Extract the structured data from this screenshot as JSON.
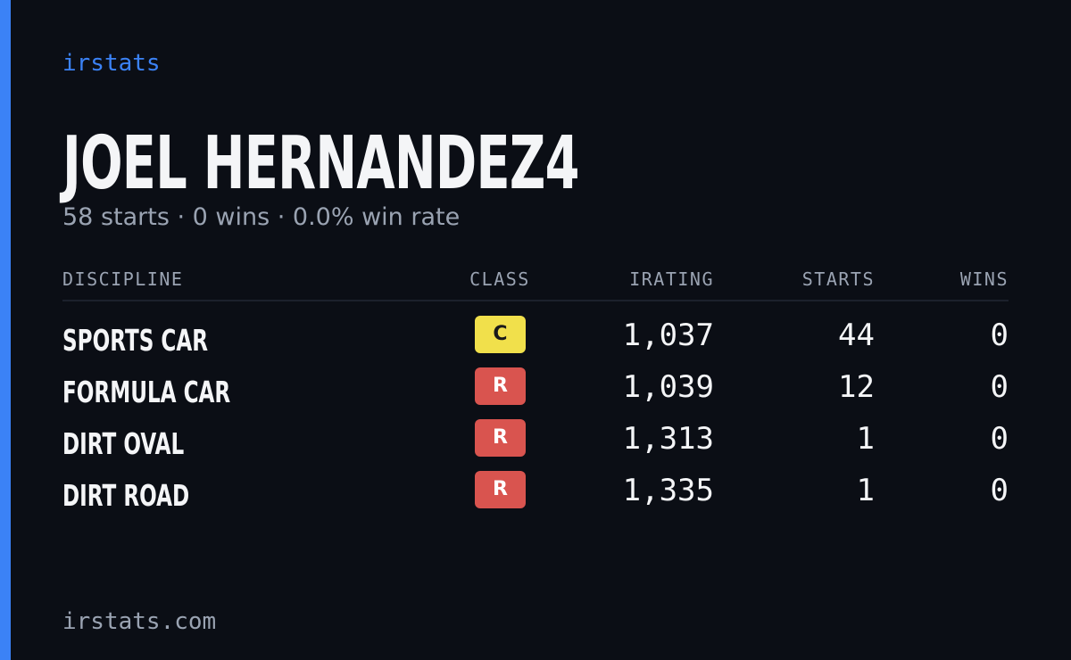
{
  "brand": "irstats",
  "title": "JOEL HERNANDEZ4",
  "subtitle": "58 starts · 0 wins · 0.0% win rate",
  "table": {
    "headers": [
      "DISCIPLINE",
      "CLASS",
      "IRATING",
      "STARTS",
      "WINS"
    ],
    "rows": [
      {
        "discipline": "SPORTS CAR",
        "class": "C",
        "class_color": "#f1e04b",
        "irating": "1,037",
        "starts": 44,
        "wins": 0
      },
      {
        "discipline": "FORMULA CAR",
        "class": "R",
        "class_color": "#d9544f",
        "irating": "1,039",
        "starts": 12,
        "wins": 0
      },
      {
        "discipline": "DIRT OVAL",
        "class": "R",
        "class_color": "#d9544f",
        "irating": "1,313",
        "starts": 1,
        "wins": 0
      },
      {
        "discipline": "DIRT ROAD",
        "class": "R",
        "class_color": "#d9544f",
        "irating": "1,335",
        "starts": 1,
        "wins": 0
      }
    ]
  },
  "footer": "irstats.com"
}
